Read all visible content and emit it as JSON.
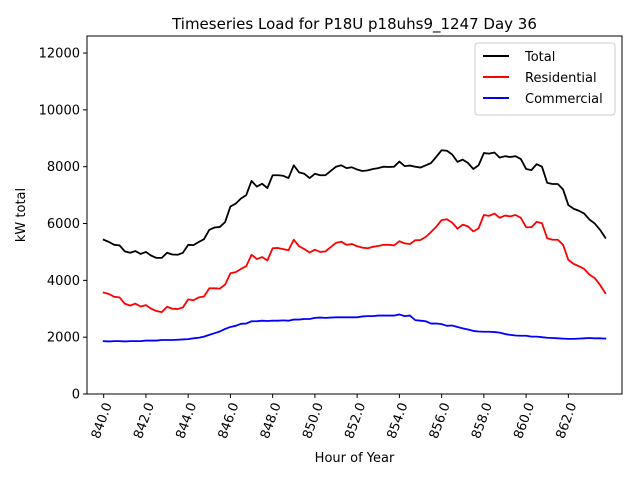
{
  "chart_data": {
    "type": "line",
    "title": "Timeseries Load for P18U p18uhs9_1247  Day 36",
    "xlabel": "Hour of Year",
    "ylabel": "kW total",
    "xlim": [
      839.21,
      864.54
    ],
    "ylim": [
      0,
      12600
    ],
    "x_ticks": [
      840,
      842,
      844,
      846,
      848,
      850,
      852,
      854,
      856,
      858,
      860,
      862
    ],
    "x_tick_labels": [
      "840.0",
      "842.0",
      "844.0",
      "846.0",
      "848.0",
      "850.0",
      "852.0",
      "854.0",
      "856.0",
      "858.0",
      "860.0",
      "862.0"
    ],
    "y_ticks": [
      0,
      2000,
      4000,
      6000,
      8000,
      10000,
      12000
    ],
    "y_tick_labels": [
      "0",
      "2000",
      "4000",
      "6000",
      "8000",
      "10000",
      "12000"
    ],
    "legend": {
      "position": "top-right",
      "entries": [
        "Total",
        "Residential",
        "Commercial"
      ]
    },
    "x_start": 840,
    "x_step": 0.25,
    "series": [
      {
        "name": "Total",
        "color": "#000000",
        "values": [
          5430,
          5350,
          5250,
          5230,
          5020,
          4970,
          5030,
          4930,
          5000,
          4870,
          4790,
          4790,
          4970,
          4910,
          4900,
          4970,
          5250,
          5240,
          5350,
          5450,
          5780,
          5860,
          5880,
          6050,
          6600,
          6700,
          6880,
          7000,
          7500,
          7300,
          7400,
          7250,
          7700,
          7700,
          7680,
          7600,
          8050,
          7800,
          7750,
          7600,
          7750,
          7700,
          7700,
          7850,
          8000,
          8050,
          7950,
          7980,
          7900,
          7850,
          7870,
          7920,
          7950,
          8000,
          7990,
          8000,
          8180,
          8020,
          8040,
          8000,
          7970,
          8050,
          8130,
          8350,
          8580,
          8560,
          8430,
          8170,
          8250,
          8130,
          7920,
          8050,
          8480,
          8460,
          8500,
          8320,
          8370,
          8340,
          8370,
          8270,
          7920,
          7880,
          8090,
          8000,
          7430,
          7390,
          7390,
          7200,
          6650,
          6520,
          6450,
          6350,
          6140,
          6000,
          5780,
          5500
        ]
      },
      {
        "name": "Residential",
        "color": "#ff0000",
        "values": [
          3570,
          3520,
          3420,
          3400,
          3180,
          3110,
          3180,
          3080,
          3130,
          3000,
          2920,
          2880,
          3070,
          3000,
          2990,
          3050,
          3330,
          3300,
          3400,
          3430,
          3720,
          3720,
          3710,
          3850,
          4250,
          4290,
          4400,
          4500,
          4900,
          4750,
          4820,
          4700,
          5130,
          5140,
          5100,
          5060,
          5430,
          5200,
          5100,
          4980,
          5080,
          5000,
          5020,
          5170,
          5320,
          5360,
          5250,
          5280,
          5200,
          5150,
          5130,
          5180,
          5210,
          5250,
          5250,
          5230,
          5380,
          5300,
          5280,
          5410,
          5420,
          5530,
          5700,
          5890,
          6120,
          6150,
          6030,
          5820,
          5960,
          5900,
          5720,
          5830,
          6300,
          6270,
          6350,
          6200,
          6280,
          6250,
          6300,
          6200,
          5870,
          5870,
          6060,
          6010,
          5480,
          5430,
          5430,
          5250,
          4720,
          4580,
          4500,
          4400,
          4200,
          4080,
          3840,
          3550
        ]
      },
      {
        "name": "Commercial",
        "color": "#0000ff",
        "values": [
          1860,
          1850,
          1860,
          1860,
          1850,
          1860,
          1860,
          1860,
          1880,
          1880,
          1880,
          1900,
          1900,
          1900,
          1910,
          1920,
          1930,
          1960,
          1980,
          2020,
          2080,
          2140,
          2200,
          2290,
          2360,
          2400,
          2470,
          2480,
          2560,
          2560,
          2580,
          2570,
          2580,
          2580,
          2590,
          2580,
          2620,
          2620,
          2640,
          2640,
          2680,
          2690,
          2680,
          2690,
          2700,
          2700,
          2700,
          2700,
          2700,
          2730,
          2740,
          2740,
          2760,
          2760,
          2760,
          2760,
          2800,
          2740,
          2760,
          2600,
          2580,
          2560,
          2480,
          2480,
          2460,
          2400,
          2410,
          2360,
          2310,
          2270,
          2220,
          2200,
          2190,
          2190,
          2180,
          2160,
          2110,
          2080,
          2060,
          2050,
          2050,
          2020,
          2020,
          2000,
          1980,
          1970,
          1960,
          1950,
          1940,
          1940,
          1950,
          1960,
          1970,
          1960,
          1960,
          1950
        ]
      }
    ]
  }
}
